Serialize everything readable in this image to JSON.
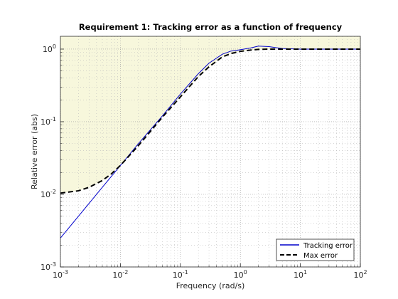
{
  "chart_data": {
    "type": "line",
    "title": "Requirement 1: Tracking error as a function of frequency",
    "xlabel": "Frequency (rad/s)",
    "ylabel": "Relative error (abs)",
    "xscale": "log",
    "yscale": "log",
    "xlim": [
      0.001,
      100
    ],
    "ylim": [
      0.001,
      1.5
    ],
    "grid": true,
    "minor_grid": true,
    "legend_position": "bottom-right",
    "x_ticks": [
      {
        "value": 0.001,
        "base": "10",
        "exp": "-3"
      },
      {
        "value": 0.01,
        "base": "10",
        "exp": "-2"
      },
      {
        "value": 0.1,
        "base": "10",
        "exp": "-1"
      },
      {
        "value": 1,
        "base": "10",
        "exp": "0"
      },
      {
        "value": 10,
        "base": "10",
        "exp": "1"
      },
      {
        "value": 100,
        "base": "10",
        "exp": "2"
      }
    ],
    "y_ticks": [
      {
        "value": 0.001,
        "base": "10",
        "exp": "-3"
      },
      {
        "value": 0.01,
        "base": "10",
        "exp": "-2"
      },
      {
        "value": 0.1,
        "base": "10",
        "exp": "-1"
      },
      {
        "value": 1,
        "base": "10",
        "exp": "0"
      }
    ],
    "shaded_region": {
      "description_color": "#f7f7dc",
      "bound_series": "Max error"
    },
    "series": [
      {
        "name": "Tracking error",
        "color": "#0000cc",
        "style": "solid",
        "x": [
          0.001,
          0.002,
          0.005,
          0.01,
          0.02,
          0.05,
          0.1,
          0.2,
          0.3,
          0.5,
          0.7,
          1,
          1.5,
          2,
          3,
          5,
          10,
          20,
          50,
          100
        ],
        "y": [
          0.0025,
          0.005,
          0.0125,
          0.025,
          0.05,
          0.12,
          0.24,
          0.46,
          0.64,
          0.85,
          0.94,
          0.98,
          1.04,
          1.1,
          1.08,
          1.02,
          1.0,
          1.0,
          1.0,
          1.0
        ]
      },
      {
        "name": "Max error",
        "color": "#000000",
        "style": "dashed",
        "x": [
          0.001,
          0.002,
          0.003,
          0.005,
          0.007,
          0.01,
          0.02,
          0.05,
          0.1,
          0.2,
          0.3,
          0.5,
          0.7,
          1,
          1.5,
          2,
          3,
          5,
          10,
          20,
          50,
          100
        ],
        "y": [
          0.0104,
          0.0112,
          0.0125,
          0.0155,
          0.019,
          0.025,
          0.047,
          0.115,
          0.22,
          0.42,
          0.57,
          0.78,
          0.87,
          0.93,
          0.97,
          0.99,
          1.0,
          1.0,
          1.0,
          1.0,
          1.0,
          1.0
        ]
      }
    ]
  }
}
